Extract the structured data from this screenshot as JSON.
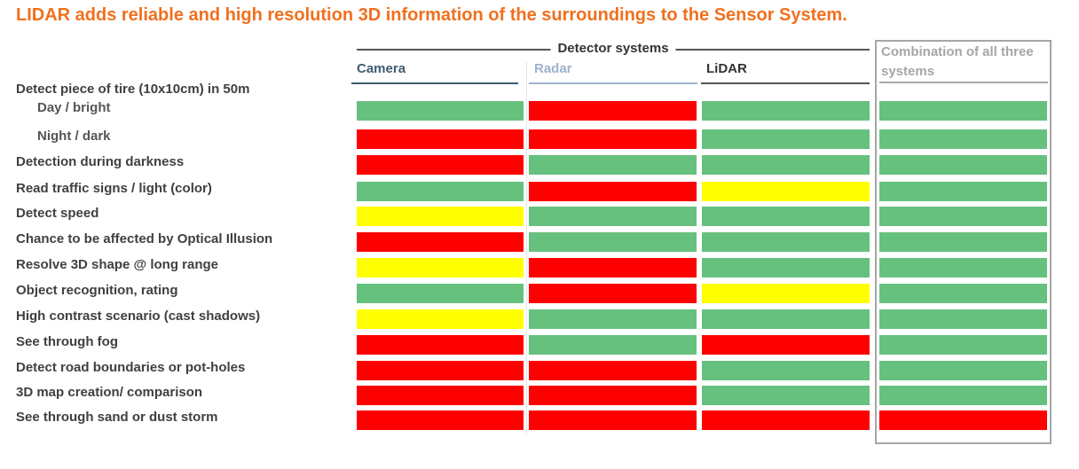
{
  "title": "LIDAR adds reliable and high resolution 3D information of the surroundings to the Sensor System.",
  "group_label": "Detector systems",
  "columns": [
    {
      "key": "camera",
      "label": "Camera"
    },
    {
      "key": "radar",
      "label": "Radar"
    },
    {
      "key": "lidar",
      "label": "LiDAR"
    },
    {
      "key": "combo",
      "label": "Combination of all three systems"
    }
  ],
  "group_row_label": "Detect piece of tire (10x10cm) in 50m",
  "colors": {
    "green": "#66c17e",
    "red": "#ff0000",
    "yellow": "#ffff00"
  },
  "rows": [
    {
      "label": "Day / bright",
      "sub": true,
      "ratings": [
        "green",
        "red",
        "green",
        "green"
      ]
    },
    {
      "label": "Night / dark",
      "sub": true,
      "ratings": [
        "red",
        "red",
        "green",
        "green"
      ]
    },
    {
      "label": "Detection during darkness",
      "sub": false,
      "ratings": [
        "red",
        "green",
        "green",
        "green"
      ]
    },
    {
      "label": "Read traffic signs / light (color)",
      "sub": false,
      "ratings": [
        "green",
        "red",
        "yellow",
        "green"
      ]
    },
    {
      "label": "Detect speed",
      "sub": false,
      "ratings": [
        "yellow",
        "green",
        "green",
        "green"
      ]
    },
    {
      "label": "Chance to be affected by Optical Illusion",
      "sub": false,
      "ratings": [
        "red",
        "green",
        "green",
        "green"
      ]
    },
    {
      "label": "Resolve 3D shape @ long range",
      "sub": false,
      "ratings": [
        "yellow",
        "red",
        "green",
        "green"
      ]
    },
    {
      "label": "Object recognition, rating",
      "sub": false,
      "ratings": [
        "green",
        "red",
        "yellow",
        "green"
      ]
    },
    {
      "label": "High contrast scenario (cast shadows)",
      "sub": false,
      "ratings": [
        "yellow",
        "green",
        "green",
        "green"
      ]
    },
    {
      "label": "See through fog",
      "sub": false,
      "ratings": [
        "red",
        "green",
        "red",
        "green"
      ]
    },
    {
      "label": "Detect road boundaries or pot-holes",
      "sub": false,
      "ratings": [
        "red",
        "red",
        "green",
        "green"
      ]
    },
    {
      "label": "3D map creation/ comparison",
      "sub": false,
      "ratings": [
        "red",
        "red",
        "green",
        "green"
      ]
    },
    {
      "label": "See through sand or dust storm",
      "sub": false,
      "ratings": [
        "red",
        "red",
        "red",
        "red"
      ]
    }
  ]
}
